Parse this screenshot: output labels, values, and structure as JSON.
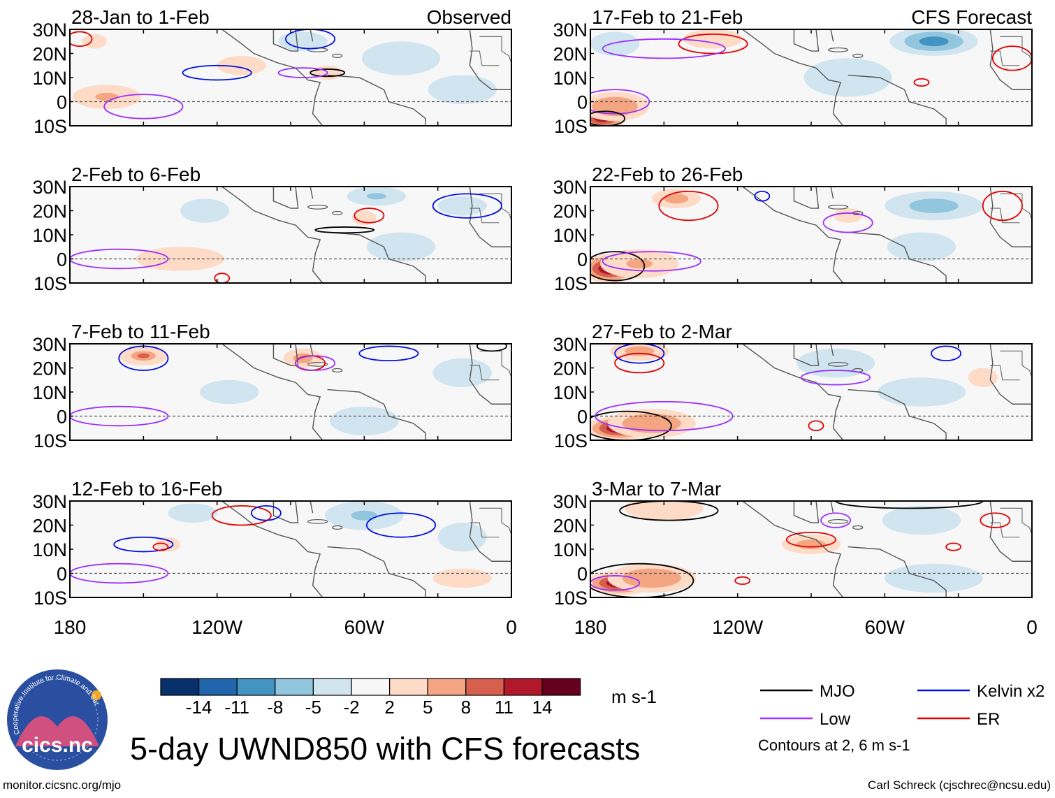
{
  "chart_data": {
    "type": "heatmap",
    "title": "5-day UWND850 with CFS forecasts",
    "variable": "850-hPa zonal wind anomaly",
    "units": "m s-1",
    "column_headers": {
      "observed": "Observed",
      "forecast": "CFS Forecast"
    },
    "lat_ticks": [
      "30N",
      "20N",
      "10N",
      "0",
      "10S"
    ],
    "lon_ticks": [
      "180",
      "120W",
      "60W",
      "0"
    ],
    "lat_range": [
      -10,
      30
    ],
    "lon_range": [
      -180,
      0
    ],
    "colorbar": {
      "labels": [
        "-14",
        "-11",
        "-8",
        "-5",
        "-2",
        "2",
        "5",
        "8",
        "11",
        "14"
      ],
      "colors": [
        "#08306b",
        "#2166ac",
        "#4393c3",
        "#92c5de",
        "#d1e5f0",
        "#f7f7f7",
        "#fddbc7",
        "#f4a582",
        "#d6604d",
        "#b2182b",
        "#67001f"
      ]
    },
    "contour_note": "Contours at 2, 6 m s-1",
    "legend": [
      {
        "name": "MJO",
        "color": "#000000"
      },
      {
        "name": "Kelvin x2",
        "color": "#0010e0"
      },
      {
        "name": "Low",
        "color": "#9b30ff"
      },
      {
        "name": "ER",
        "color": "#e00000"
      }
    ],
    "panels": [
      {
        "label": "28-Jan to 1-Feb",
        "source": "observed",
        "blobs": [
          [
            -165,
            2,
            14,
            5,
            7
          ],
          [
            -110,
            15,
            10,
            4,
            2
          ],
          [
            -85,
            25,
            10,
            4,
            -4
          ],
          [
            -45,
            18,
            16,
            7,
            -3
          ],
          [
            -20,
            5,
            14,
            6,
            -2
          ],
          [
            -75,
            12,
            6,
            3,
            3
          ],
          [
            -170,
            25,
            5,
            3,
            3
          ]
        ],
        "contours": [
          {
            "type": "Kelvin",
            "lon": -120,
            "lat": 12,
            "rx": 14,
            "ry": 3
          },
          {
            "type": "Kelvin",
            "lon": -82,
            "lat": 26,
            "rx": 10,
            "ry": 4
          },
          {
            "type": "Low",
            "lon": -150,
            "lat": -2,
            "rx": 16,
            "ry": 5
          },
          {
            "type": "ER",
            "lon": -176,
            "lat": 26,
            "rx": 5,
            "ry": 3
          },
          {
            "type": "MJO",
            "lon": -75,
            "lat": 12,
            "rx": 7,
            "ry": 1.5
          },
          {
            "type": "Low",
            "lon": -85,
            "lat": 12,
            "rx": 10,
            "ry": 2
          }
        ]
      },
      {
        "label": "2-Feb to 6-Feb",
        "source": "observed",
        "blobs": [
          [
            -125,
            20,
            10,
            5,
            -4
          ],
          [
            -55,
            26,
            12,
            4,
            -7
          ],
          [
            -20,
            22,
            10,
            4,
            -4
          ],
          [
            -60,
            17,
            5,
            3,
            5
          ],
          [
            -135,
            0,
            18,
            5,
            2
          ],
          [
            -45,
            5,
            14,
            6,
            -3
          ]
        ],
        "contours": [
          {
            "type": "Kelvin",
            "lon": -18,
            "lat": 22,
            "rx": 14,
            "ry": 5
          },
          {
            "type": "ER",
            "lon": -58,
            "lat": 18,
            "rx": 6,
            "ry": 3
          },
          {
            "type": "MJO",
            "lon": -68,
            "lat": 12,
            "rx": 12,
            "ry": 1.2
          },
          {
            "type": "Low",
            "lon": -160,
            "lat": 0,
            "rx": 20,
            "ry": 4
          },
          {
            "type": "ER",
            "lon": -118,
            "lat": -8,
            "rx": 3,
            "ry": 2
          }
        ]
      },
      {
        "label": "7-Feb to 11-Feb",
        "source": "observed",
        "blobs": [
          [
            -150,
            25,
            10,
            4,
            10
          ],
          [
            -85,
            24,
            8,
            4,
            6
          ],
          [
            -20,
            18,
            12,
            6,
            -4
          ],
          [
            -115,
            10,
            12,
            5,
            -3
          ],
          [
            -60,
            -2,
            14,
            6,
            -3
          ]
        ],
        "contours": [
          {
            "type": "Kelvin",
            "lon": -150,
            "lat": 24,
            "rx": 10,
            "ry": 5
          },
          {
            "type": "Low",
            "lon": -160,
            "lat": 0,
            "rx": 20,
            "ry": 4
          },
          {
            "type": "ER",
            "lon": -82,
            "lat": 22,
            "rx": 6,
            "ry": 3
          },
          {
            "type": "Low",
            "lon": -80,
            "lat": 22,
            "rx": 8,
            "ry": 3
          },
          {
            "type": "Kelvin",
            "lon": -50,
            "lat": 26,
            "rx": 12,
            "ry": 3
          },
          {
            "type": "MJO",
            "lon": -8,
            "lat": 29,
            "rx": 6,
            "ry": 2
          }
        ]
      },
      {
        "label": "12-Feb to 16-Feb",
        "source": "observed",
        "blobs": [
          [
            -60,
            24,
            16,
            6,
            -7
          ],
          [
            -20,
            15,
            10,
            6,
            -4
          ],
          [
            -140,
            12,
            5,
            3,
            5
          ],
          [
            -130,
            25,
            10,
            4,
            -3
          ],
          [
            -20,
            -2,
            12,
            4,
            3
          ]
        ],
        "contours": [
          {
            "type": "Kelvin",
            "lon": -150,
            "lat": 12,
            "rx": 12,
            "ry": 3
          },
          {
            "type": "Kelvin",
            "lon": -45,
            "lat": 20,
            "rx": 14,
            "ry": 5
          },
          {
            "type": "ER",
            "lon": -110,
            "lat": 24,
            "rx": 12,
            "ry": 4
          },
          {
            "type": "Kelvin",
            "lon": -100,
            "lat": 25,
            "rx": 6,
            "ry": 3
          },
          {
            "type": "Low",
            "lon": -160,
            "lat": 0,
            "rx": 20,
            "ry": 4
          },
          {
            "type": "ER",
            "lon": -143,
            "lat": 11,
            "rx": 3,
            "ry": 1.5
          }
        ]
      },
      {
        "label": "17-Feb to 21-Feb",
        "source": "forecast",
        "blobs": [
          [
            -175,
            -6,
            10,
            6,
            14
          ],
          [
            -170,
            -2,
            14,
            6,
            8
          ],
          [
            -40,
            25,
            18,
            6,
            -8
          ],
          [
            -170,
            24,
            10,
            5,
            -4
          ],
          [
            -75,
            10,
            18,
            8,
            -3
          ],
          [
            -130,
            26,
            12,
            4,
            2
          ]
        ],
        "contours": [
          {
            "type": "Low",
            "lon": -170,
            "lat": 0,
            "rx": 14,
            "ry": 5
          },
          {
            "type": "MJO",
            "lon": -174,
            "lat": -7,
            "rx": 8,
            "ry": 3
          },
          {
            "type": "ER",
            "lon": -130,
            "lat": 24,
            "rx": 14,
            "ry": 4
          },
          {
            "type": "Low",
            "lon": -150,
            "lat": 22,
            "rx": 25,
            "ry": 4
          },
          {
            "type": "ER",
            "lon": -45,
            "lat": 8,
            "rx": 3,
            "ry": 1.5
          },
          {
            "type": "ER",
            "lon": -8,
            "lat": 18,
            "rx": 8,
            "ry": 5
          }
        ]
      },
      {
        "label": "22-Feb to 26-Feb",
        "source": "forecast",
        "blobs": [
          [
            -172,
            -4,
            12,
            6,
            14
          ],
          [
            -160,
            -2,
            16,
            6,
            7
          ],
          [
            -145,
            25,
            10,
            4,
            6
          ],
          [
            -40,
            22,
            20,
            6,
            -5
          ],
          [
            -45,
            5,
            14,
            6,
            -3
          ],
          [
            -75,
            18,
            6,
            3,
            3
          ]
        ],
        "contours": [
          {
            "type": "MJO",
            "lon": -170,
            "lat": -3,
            "rx": 12,
            "ry": 6
          },
          {
            "type": "Low",
            "lon": -155,
            "lat": -1,
            "rx": 20,
            "ry": 4
          },
          {
            "type": "ER",
            "lon": -140,
            "lat": 22,
            "rx": 12,
            "ry": 6
          },
          {
            "type": "Low",
            "lon": -75,
            "lat": 15,
            "rx": 10,
            "ry": 4
          },
          {
            "type": "Kelvin",
            "lon": -110,
            "lat": 26,
            "rx": 3,
            "ry": 2
          },
          {
            "type": "ER",
            "lon": -12,
            "lat": 22,
            "rx": 8,
            "ry": 6
          }
        ]
      },
      {
        "label": "27-Feb to 2-Mar",
        "source": "forecast",
        "blobs": [
          [
            -168,
            -5,
            14,
            5,
            14
          ],
          [
            -155,
            -3,
            18,
            6,
            8
          ],
          [
            -160,
            27,
            12,
            4,
            6
          ],
          [
            -80,
            22,
            16,
            6,
            -4
          ],
          [
            -45,
            10,
            18,
            6,
            -2
          ],
          [
            -20,
            16,
            6,
            4,
            3
          ]
        ],
        "contours": [
          {
            "type": "MJO",
            "lon": -165,
            "lat": -4,
            "rx": 18,
            "ry": 6
          },
          {
            "type": "Low",
            "lon": -150,
            "lat": 0,
            "rx": 28,
            "ry": 6
          },
          {
            "type": "ER",
            "lon": -160,
            "lat": 22,
            "rx": 10,
            "ry": 4
          },
          {
            "type": "Kelvin",
            "lon": -160,
            "lat": 26,
            "rx": 10,
            "ry": 4
          },
          {
            "type": "Kelvin",
            "lon": -35,
            "lat": 26,
            "rx": 6,
            "ry": 3
          },
          {
            "type": "ER",
            "lon": -88,
            "lat": -4,
            "rx": 3,
            "ry": 2
          },
          {
            "type": "Low",
            "lon": -80,
            "lat": 16,
            "rx": 14,
            "ry": 3
          }
        ]
      },
      {
        "label": "3-Mar to 7-Mar",
        "source": "forecast",
        "blobs": [
          [
            -168,
            -4,
            14,
            5,
            14
          ],
          [
            -155,
            -2,
            18,
            6,
            8
          ],
          [
            -90,
            12,
            12,
            4,
            6
          ],
          [
            -150,
            27,
            16,
            5,
            4
          ],
          [
            -45,
            22,
            16,
            6,
            -2
          ],
          [
            -40,
            -2,
            20,
            6,
            -2
          ]
        ],
        "contours": [
          {
            "type": "MJO",
            "lon": -160,
            "lat": -3,
            "rx": 22,
            "ry": 7
          },
          {
            "type": "Low",
            "lon": -170,
            "lat": -4,
            "rx": 10,
            "ry": 3
          },
          {
            "type": "MJO",
            "lon": -148,
            "lat": 26,
            "rx": 20,
            "ry": 4
          },
          {
            "type": "MJO",
            "lon": -50,
            "lat": 30,
            "rx": 30,
            "ry": 3
          },
          {
            "type": "ER",
            "lon": -90,
            "lat": 14,
            "rx": 10,
            "ry": 3
          },
          {
            "type": "ER",
            "lon": -15,
            "lat": 22,
            "rx": 6,
            "ry": 3
          },
          {
            "type": "ER",
            "lon": -32,
            "lat": 11,
            "rx": 3,
            "ry": 1.5
          },
          {
            "type": "ER",
            "lon": -118,
            "lat": -3,
            "rx": 3,
            "ry": 1.5
          },
          {
            "type": "Low",
            "lon": -80,
            "lat": 22,
            "rx": 6,
            "ry": 3
          }
        ]
      }
    ]
  },
  "logo": {
    "text": "cics.nc",
    "ring_text": "Cooperative Institute for Climate and Satellites"
  },
  "footer": {
    "url": "monitor.cicsnc.org/mjo",
    "credit": "Carl Schreck (cjschrec@ncsu.edu)"
  }
}
